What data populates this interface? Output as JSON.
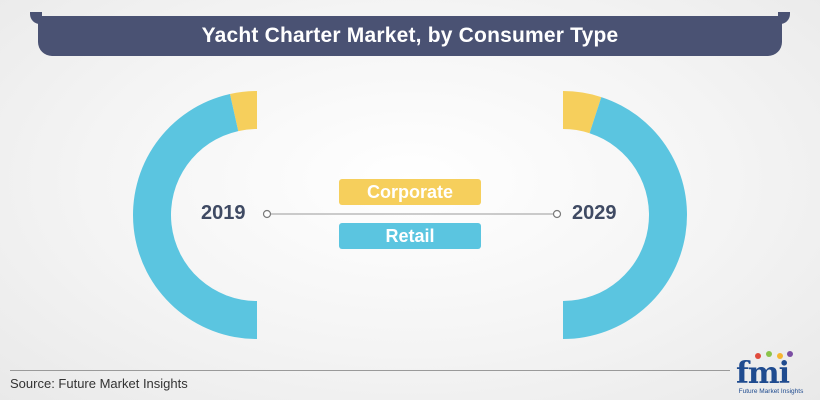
{
  "chart_data": {
    "type": "donut",
    "title": "Yacht Charter Market, by Consumer Type",
    "categories": [
      "Corporate",
      "Retail"
    ],
    "colors": {
      "Corporate": "#f6cf5c",
      "Retail": "#5bc5e0"
    },
    "years": [
      {
        "label": "2019",
        "values": {
          "Corporate": 3.5,
          "Retail": 46.5
        }
      },
      {
        "label": "2029",
        "values": {
          "Corporate": 5.0,
          "Retail": 45.0
        }
      }
    ],
    "source": "Source: Future Market Insights"
  },
  "logo": {
    "main": "fmi",
    "sub": "Future Market Insights"
  }
}
